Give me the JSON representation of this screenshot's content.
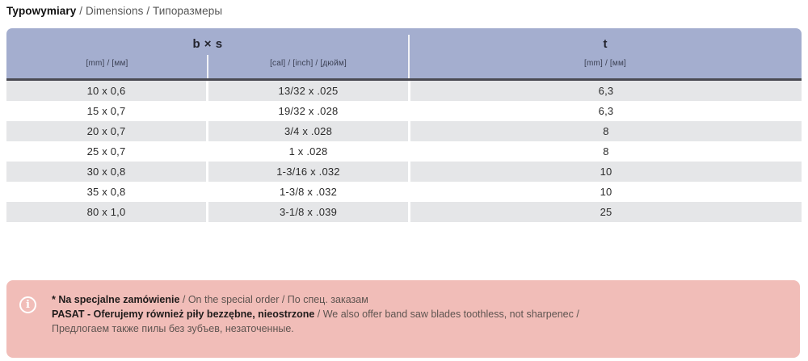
{
  "title": {
    "primary": "Typowymiary",
    "secondary": " / Dimensions / Типоразмеры"
  },
  "table": {
    "header": {
      "bs_label": "b × s",
      "t_label": "t",
      "sub_mm": "[mm] / [мм]",
      "sub_inch": "[cal] / [inch] / [дюйм]",
      "sub_t_mm": "[mm] / [мм]"
    },
    "columns": [
      "b x s [mm]/[мм]",
      "b x s [cal]/[inch]/[дюйм]",
      "t [mm]/[мм]"
    ],
    "rows": [
      {
        "bs_mm": "10 x 0,6",
        "bs_inch": "13/32 x .025",
        "t": "6,3"
      },
      {
        "bs_mm": "15 x 0,7",
        "bs_inch": "19/32 x .028",
        "t": "6,3"
      },
      {
        "bs_mm": "20 x 0,7",
        "bs_inch": "3/4 x .028",
        "t": "8"
      },
      {
        "bs_mm": "25 x 0,7",
        "bs_inch": "1 x .028",
        "t": "8"
      },
      {
        "bs_mm": "30 x 0,8",
        "bs_inch": "1-3/16 x .032",
        "t": "10"
      },
      {
        "bs_mm": "35 x 0,8",
        "bs_inch": "1-3/8 x .032",
        "t": "10"
      },
      {
        "bs_mm": "80 x 1,0",
        "bs_inch": "3-1/8 x .039",
        "t": "25"
      }
    ]
  },
  "note": {
    "icon_glyph": "i",
    "line1_bold": "* Na specjalne zamówienie",
    "line1_rest": " / On the special order / По спец. заказам",
    "line2_bold": "PASAT - Oferujemy również piły bezzębne, nieostrzone",
    "line2_rest": " / We also offer band saw blades toothless, not sharpenec /",
    "line3": "Предлогаем также пилы без зубъев, незаточенные."
  },
  "colors": {
    "header_bg": "#a4aecf",
    "row_stripe": "#e5e6e8",
    "header_rule": "#4a4a52",
    "note_bg": "#f1bdb8"
  }
}
